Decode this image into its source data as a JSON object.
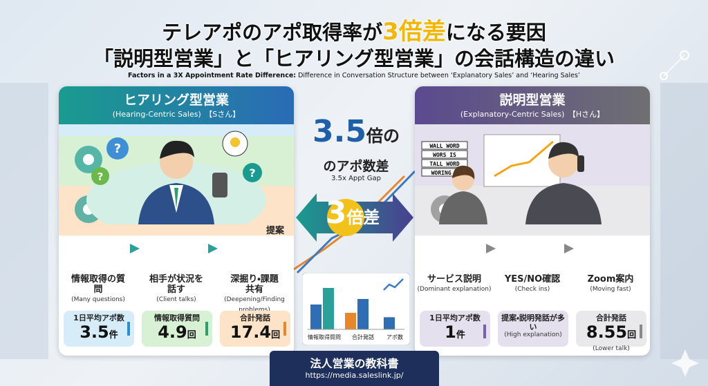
{
  "header": {
    "title_parts": [
      "テレアポのアポ取得率が",
      "3倍差",
      "になる要因"
    ],
    "title_line2": "「説明型営業」と「ヒアリング型営業」の会話構造の違い",
    "subtitle_bold": "Factors in a 3X Appointment Rate Difference:",
    "subtitle_rest": " Difference in Conversation Structure between ‘Explanatory Sales’ and ‘Hearing Sales’"
  },
  "left_panel": {
    "title": "ヒアリング型営業",
    "subtitle": "(Hearing-Centric Sales)",
    "person": "【Sさん】",
    "steps": [
      {
        "label": "情報取得の質問",
        "en": "(Many questions)"
      },
      {
        "label": "相手が状況を話す",
        "en": "(Client talks)"
      },
      {
        "label": "深掘り・課題共有",
        "en": "(Deepening/Finding problems)"
      }
    ],
    "step_note": "提案",
    "stats": [
      {
        "label": "1日平均アポ数",
        "value": 3.5,
        "unit": "件"
      },
      {
        "label": "情報取得質問",
        "value": 4.9,
        "unit": "回"
      },
      {
        "label": "合計発話",
        "value": 17.4,
        "unit": "回"
      }
    ]
  },
  "right_panel": {
    "title": "説明型営業",
    "subtitle": "(Explanatory-Centric Sales)",
    "person": "【Hさん】",
    "steps": [
      {
        "label": "サービス説明",
        "en": "(Dominant explanation)"
      },
      {
        "label": "YES/NO確認",
        "en": "(Check ins)"
      },
      {
        "label": "Zoom案内",
        "en": "(Moving fast)"
      }
    ],
    "step_icon_text": [
      "WALL WORD",
      "WORS IS",
      "TALL WORD",
      "WORING T"
    ],
    "stats": [
      {
        "label": "1日平均アポ数",
        "value": 1,
        "unit": "件"
      },
      {
        "label": "提案・説明発話が多い",
        "note": "(High explanation)"
      },
      {
        "label": "合計発話",
        "value": 8.55,
        "unit": "回",
        "note": "(Lower talk)"
      }
    ]
  },
  "center": {
    "ratio": 3.5,
    "ratio_unit": "倍の",
    "ratio_line2": "のアポ数差",
    "ratio_en": "3.5x Appt Gap",
    "banner_value": 3,
    "banner_unit": "倍差"
  },
  "chart_data": {
    "type": "bar",
    "categories": [
      "情報取得質問",
      null,
      "合計発話",
      null,
      "アポ数"
    ],
    "values": [
      45,
      75,
      30,
      55,
      22
    ],
    "colors": [
      "#2f6db5",
      "#2aa198",
      "#e8862b",
      "#2f6db5",
      "#2f6db5"
    ]
  },
  "footer": {
    "brand": "法人営業の教科書",
    "url": "https://media.saleslink.jp/"
  }
}
